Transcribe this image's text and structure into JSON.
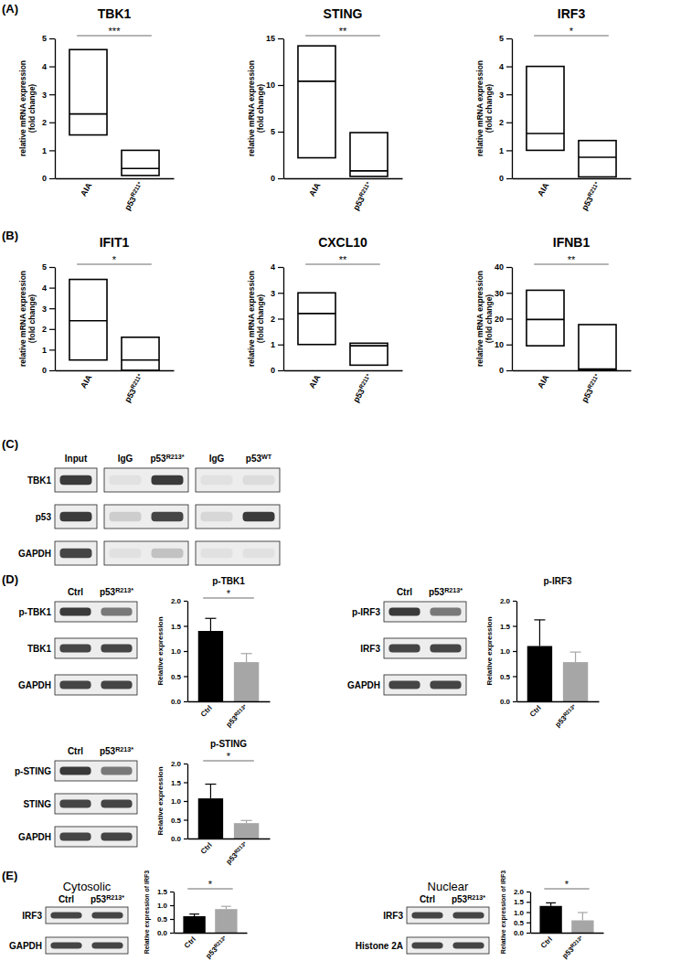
{
  "panels": [
    "(A)",
    "(B)",
    "(C)",
    "(D)",
    "(E)"
  ],
  "blots": [
    {
      "columns": [
        "Input",
        "IgG",
        "p53R213*",
        "IgG",
        "p53WT"
      ],
      "rows": [
        "TBK1",
        "p53",
        "GAPDH"
      ]
    },
    {
      "columns": [
        "Ctrl",
        "p53R213*"
      ],
      "rows": [
        "p-TBK1",
        "TBK1",
        "GAPDH"
      ]
    },
    {
      "columns": [
        "Ctrl",
        "p53R213*"
      ],
      "rows": [
        "p-IRF3",
        "IRF3",
        "GAPDH"
      ]
    },
    {
      "columns": [
        "Ctrl",
        "p53R213*"
      ],
      "rows": [
        "p-STING",
        "STING",
        "GAPDH"
      ]
    },
    {
      "title": "Cytosolic",
      "columns": [
        "Ctrl",
        "p53R213*"
      ],
      "rows": [
        "IRF3",
        "GAPDH"
      ]
    },
    {
      "title": "Nuclear",
      "columns": [
        "Ctrl",
        "p53R213*"
      ],
      "rows": [
        "IRF3",
        "Histone 2A"
      ]
    }
  ],
  "chart_data": [
    {
      "type": "box",
      "title": "TBK1",
      "y_label": [
        "relative mRNA expression",
        "(fold change)"
      ],
      "categories": [
        "AIA",
        "p53R211*"
      ],
      "min": [
        1.55,
        0.1
      ],
      "median": [
        2.3,
        0.35
      ],
      "max": [
        4.6,
        1.0
      ],
      "ylim": [
        0,
        5
      ],
      "yticks": [
        0,
        1,
        2,
        3,
        4,
        5
      ],
      "significance": "***"
    },
    {
      "type": "box",
      "title": "STING",
      "y_label": [
        "relative mRNA expression",
        "(fold change)"
      ],
      "categories": [
        "AIA",
        "p53R211*"
      ],
      "min": [
        2.2,
        0.2
      ],
      "median": [
        10.4,
        0.8
      ],
      "max": [
        14.2,
        4.9
      ],
      "ylim": [
        0,
        15
      ],
      "yticks": [
        0,
        5,
        10,
        15
      ],
      "significance": "**"
    },
    {
      "type": "box",
      "title": "IRF3",
      "y_label": [
        "relative mRNA expression",
        "(fold change)"
      ],
      "categories": [
        "AIA",
        "p53R211*"
      ],
      "min": [
        1.0,
        0.05
      ],
      "median": [
        1.6,
        0.75
      ],
      "max": [
        4.0,
        1.35
      ],
      "ylim": [
        0,
        5
      ],
      "yticks": [
        0,
        1,
        2,
        3,
        4,
        5
      ],
      "significance": "*"
    },
    {
      "type": "box",
      "title": "IFIT1",
      "y_label": [
        "relative mRNA expression",
        "(fold change)"
      ],
      "categories": [
        "AIA",
        "p53R211*"
      ],
      "min": [
        0.5,
        0.0
      ],
      "median": [
        2.4,
        0.5
      ],
      "max": [
        4.4,
        1.6
      ],
      "ylim": [
        0,
        5
      ],
      "yticks": [
        0,
        1,
        2,
        3,
        4,
        5
      ],
      "significance": "*"
    },
    {
      "type": "box",
      "title": "CXCL10",
      "y_label": [
        "relative mRNA expression",
        "(fold change)"
      ],
      "categories": [
        "AIA",
        "p53R211*"
      ],
      "min": [
        1.0,
        0.2
      ],
      "median": [
        2.2,
        0.95
      ],
      "max": [
        3.0,
        1.05
      ],
      "ylim": [
        0,
        4
      ],
      "yticks": [
        0,
        1,
        2,
        3,
        4
      ],
      "significance": "**"
    },
    {
      "type": "box",
      "title": "IFNB1",
      "y_label": [
        "relative mRNA expression",
        "(fold change)"
      ],
      "categories": [
        "AIA",
        "p53R211*"
      ],
      "min": [
        9.5,
        0.0
      ],
      "median": [
        19.7,
        0.5
      ],
      "max": [
        31,
        17.7
      ],
      "ylim": [
        0,
        40
      ],
      "yticks": [
        0,
        10,
        20,
        30,
        40
      ],
      "significance": "**"
    },
    {
      "type": "bar",
      "title": "p-TBK1",
      "y_label": "Relative expression",
      "categories": [
        "Ctrl",
        "p53R213*"
      ],
      "values": [
        1.4,
        0.78
      ],
      "errors": [
        0.25,
        0.17
      ],
      "colors": [
        "#000000",
        "#a6a6a6"
      ],
      "ylim": [
        0,
        2
      ],
      "yticks": [
        {
          "value": 0,
          "label": "0.0"
        },
        0.5,
        {
          "value": 1,
          "label": "1.0"
        },
        1.5,
        {
          "value": 2,
          "label": "2.0"
        }
      ],
      "significance": "*"
    },
    {
      "type": "bar",
      "title": "p-IRF3",
      "y_label": "Relative expression",
      "categories": [
        "Ctrl",
        "p53R213*"
      ],
      "values": [
        1.1,
        0.78
      ],
      "errors": [
        0.52,
        0.2
      ],
      "colors": [
        "#000000",
        "#a6a6a6"
      ],
      "ylim": [
        0,
        2
      ],
      "yticks": [
        {
          "value": 0,
          "label": "0.0"
        },
        0.5,
        {
          "value": 1,
          "label": "1.0"
        },
        1.5,
        {
          "value": 2,
          "label": "2.0"
        }
      ]
    },
    {
      "type": "bar",
      "title": "p-STING",
      "y_label": "Relative expression",
      "categories": [
        "Ctrl",
        "p53R213*"
      ],
      "values": [
        1.07,
        0.41
      ],
      "errors": [
        0.38,
        0.07
      ],
      "colors": [
        "#000000",
        "#a6a6a6"
      ],
      "ylim": [
        0,
        2
      ],
      "yticks": [
        {
          "value": 0,
          "label": "0.0"
        },
        0.5,
        {
          "value": 1,
          "label": "1.0"
        },
        1.5,
        {
          "value": 2,
          "label": "2.0"
        }
      ],
      "significance": "*"
    },
    {
      "type": "bar",
      "y_label": "Relative expression of IRF3",
      "categories": [
        "Ctrl",
        "p53R213*"
      ],
      "values": [
        0.6,
        0.86
      ],
      "errors": [
        0.08,
        0.1
      ],
      "colors": [
        "#000000",
        "#a6a6a6"
      ],
      "ylim": [
        0,
        1.5
      ],
      "yticks": [
        {
          "value": 0,
          "label": "0.0"
        },
        0.5,
        {
          "value": 1,
          "label": "1.0"
        },
        1.5
      ],
      "significance": "*"
    },
    {
      "type": "bar",
      "y_label": "Relative expression of IRF3",
      "categories": [
        "Ctrl",
        "p53R213*"
      ],
      "values": [
        1.3,
        0.6
      ],
      "errors": [
        0.15,
        0.38
      ],
      "colors": [
        "#000000",
        "#a6a6a6"
      ],
      "ylim": [
        0,
        2
      ],
      "yticks": [
        {
          "value": 0,
          "label": "0.0"
        },
        0.5,
        {
          "value": 1,
          "label": "1.0"
        },
        1.5,
        {
          "value": 2,
          "label": "2.0"
        }
      ],
      "significance": "*"
    }
  ]
}
